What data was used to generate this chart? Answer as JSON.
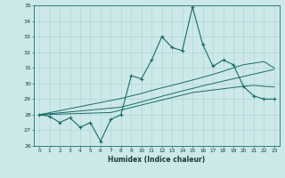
{
  "xlabel": "Humidex (Indice chaleur)",
  "x": [
    0,
    1,
    2,
    3,
    4,
    5,
    6,
    7,
    8,
    9,
    10,
    11,
    12,
    13,
    14,
    15,
    16,
    17,
    18,
    19,
    20,
    21,
    22,
    23
  ],
  "y_main": [
    28.0,
    27.9,
    27.5,
    27.8,
    27.2,
    27.5,
    26.3,
    27.7,
    28.0,
    30.5,
    30.3,
    31.5,
    33.0,
    32.3,
    32.1,
    34.9,
    32.5,
    31.1,
    31.5,
    31.2,
    29.8,
    29.2,
    29.0,
    29.0
  ],
  "y_line1": [
    28.0,
    28.06,
    28.12,
    28.18,
    28.24,
    28.3,
    28.36,
    28.42,
    28.48,
    28.65,
    28.82,
    29.0,
    29.18,
    29.35,
    29.52,
    29.68,
    29.85,
    30.0,
    30.15,
    30.3,
    30.45,
    30.6,
    30.75,
    30.9
  ],
  "y_line2": [
    28.0,
    28.13,
    28.26,
    28.39,
    28.52,
    28.65,
    28.78,
    28.91,
    29.04,
    29.2,
    29.36,
    29.55,
    29.72,
    29.88,
    30.05,
    30.22,
    30.4,
    30.58,
    30.78,
    31.0,
    31.2,
    31.3,
    31.4,
    31.0
  ],
  "y_line3": [
    28.0,
    28.02,
    28.04,
    28.06,
    28.08,
    28.1,
    28.12,
    28.14,
    28.3,
    28.46,
    28.62,
    28.78,
    28.94,
    29.1,
    29.26,
    29.42,
    29.5,
    29.58,
    29.66,
    29.74,
    29.82,
    29.88,
    29.82,
    29.78
  ],
  "ylim": [
    26,
    35
  ],
  "yticks": [
    26,
    27,
    28,
    29,
    30,
    31,
    32,
    33,
    34,
    35
  ],
  "xlim": [
    -0.5,
    23.5
  ],
  "line_color": "#1a6b6b",
  "bg_color": "#cce8e8",
  "grid_color": "#aad4d4"
}
